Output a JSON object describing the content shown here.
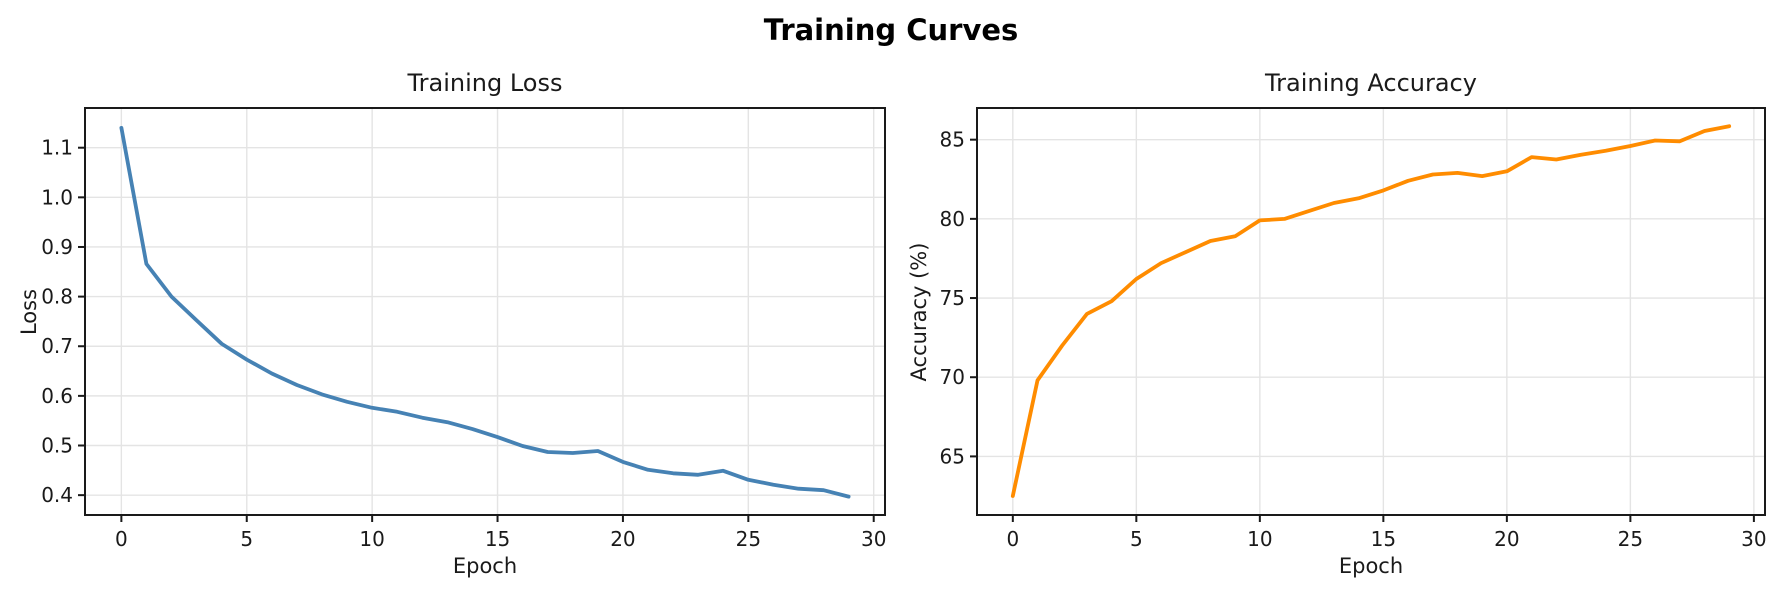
{
  "figure_title": "Training Curves",
  "colors": {
    "background": "#ffffff",
    "loss_line": "#4682b4",
    "accuracy_line": "#ff8c00",
    "grid": "#e4e4e4",
    "spine": "#1a1a1a",
    "text": "#1a1a1a"
  },
  "chart_data": [
    {
      "type": "line",
      "title": "Training Loss",
      "xlabel": "Epoch",
      "ylabel": "Loss",
      "grid": true,
      "legend": "none",
      "xlim": [
        -1.45,
        30.45
      ],
      "ylim": [
        0.36,
        1.18
      ],
      "xticks": [
        0,
        5,
        10,
        15,
        20,
        25,
        30
      ],
      "xtick_labels": [
        "0",
        "5",
        "10",
        "15",
        "20",
        "25",
        "30"
      ],
      "yticks": [
        0.4,
        0.5,
        0.6,
        0.7,
        0.8,
        0.9,
        1.0,
        1.1
      ],
      "ytick_labels": [
        "0.4",
        "0.5",
        "0.6",
        "0.7",
        "0.8",
        "0.9",
        "1.0",
        "1.1"
      ],
      "line_color": "#4682b4",
      "line_width": 3.8,
      "series": [
        {
          "name": "loss",
          "x": [
            0,
            1,
            2,
            3,
            4,
            5,
            6,
            7,
            8,
            9,
            10,
            11,
            12,
            13,
            14,
            15,
            16,
            17,
            18,
            19,
            20,
            21,
            22,
            23,
            24,
            25,
            26,
            27,
            28,
            29
          ],
          "y": [
            1.14,
            0.866,
            0.8,
            0.752,
            0.705,
            0.673,
            0.645,
            0.622,
            0.603,
            0.588,
            0.576,
            0.568,
            0.556,
            0.547,
            0.533,
            0.517,
            0.499,
            0.487,
            0.485,
            0.489,
            0.467,
            0.451,
            0.444,
            0.441,
            0.449,
            0.431,
            0.421,
            0.413,
            0.41,
            0.397
          ]
        }
      ]
    },
    {
      "type": "line",
      "title": "Training Accuracy",
      "xlabel": "Epoch",
      "ylabel": "Accuracy (%)",
      "grid": true,
      "legend": "none",
      "xlim": [
        -1.45,
        30.45
      ],
      "ylim": [
        61.3,
        87.0
      ],
      "xticks": [
        0,
        5,
        10,
        15,
        20,
        25,
        30
      ],
      "xtick_labels": [
        "0",
        "5",
        "10",
        "15",
        "20",
        "25",
        "30"
      ],
      "yticks": [
        65,
        70,
        75,
        80,
        85
      ],
      "ytick_labels": [
        "65",
        "70",
        "75",
        "80",
        "85"
      ],
      "line_color": "#ff8c00",
      "line_width": 3.8,
      "series": [
        {
          "name": "accuracy",
          "x": [
            0,
            1,
            2,
            3,
            4,
            5,
            6,
            7,
            8,
            9,
            10,
            11,
            12,
            13,
            14,
            15,
            16,
            17,
            18,
            19,
            20,
            21,
            22,
            23,
            24,
            25,
            26,
            27,
            28,
            29
          ],
          "y": [
            62.5,
            69.8,
            72.0,
            74.0,
            74.8,
            76.2,
            77.2,
            77.9,
            78.6,
            78.9,
            79.9,
            80.0,
            80.5,
            81.0,
            81.3,
            81.8,
            82.4,
            82.8,
            82.9,
            82.7,
            83.0,
            83.9,
            83.75,
            84.05,
            84.3,
            84.6,
            84.95,
            84.9,
            85.55,
            85.85
          ]
        }
      ]
    }
  ]
}
